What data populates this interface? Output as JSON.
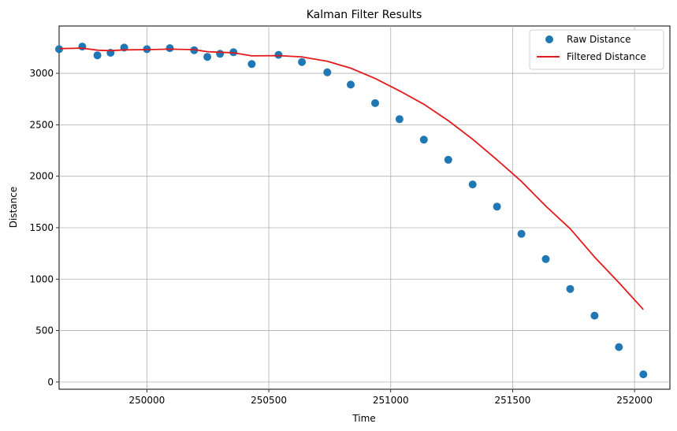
{
  "chart_data": {
    "type": "line",
    "title": "Kalman Filter Results",
    "xlabel": "Time",
    "ylabel": "Distance",
    "xlim": [
      249640,
      252145
    ],
    "ylim": [
      -70,
      3460
    ],
    "xticks": [
      250000,
      250500,
      251000,
      251500,
      252000
    ],
    "yticks": [
      0,
      500,
      1000,
      1500,
      2000,
      2500,
      3000
    ],
    "grid": true,
    "legend_position": "top-right",
    "series": [
      {
        "name": "Raw Distance",
        "kind": "scatter",
        "color": "#1f77b4",
        "x": [
          249640,
          249735,
          249797,
          249851,
          249907,
          250000,
          250094,
          250194,
          250248,
          250300,
          250355,
          250430,
          250540,
          250636,
          250740,
          250836,
          250936,
          251036,
          251136,
          251236,
          251336,
          251436,
          251536,
          251636,
          251736,
          251836,
          251936,
          252036
        ],
        "y": [
          3235,
          3260,
          3175,
          3200,
          3250,
          3235,
          3245,
          3225,
          3160,
          3190,
          3205,
          3090,
          3180,
          3110,
          3010,
          2890,
          2710,
          2555,
          2355,
          2160,
          1920,
          1705,
          1440,
          1195,
          905,
          645,
          340,
          75
        ]
      },
      {
        "name": "Filtered Distance",
        "kind": "line",
        "color": "#e31a1c",
        "x": [
          249640,
          249735,
          249797,
          249851,
          249907,
          250000,
          250094,
          250194,
          250248,
          250300,
          250355,
          250430,
          250540,
          250636,
          250740,
          250836,
          250936,
          251036,
          251136,
          251236,
          251336,
          251436,
          251536,
          251636,
          251736,
          251836,
          251936,
          252036
        ],
        "y": [
          3240,
          3245,
          3225,
          3220,
          3228,
          3230,
          3235,
          3230,
          3210,
          3205,
          3200,
          3170,
          3172,
          3160,
          3118,
          3050,
          2950,
          2830,
          2700,
          2540,
          2360,
          2160,
          1950,
          1710,
          1490,
          1215,
          965,
          705
        ]
      }
    ]
  }
}
